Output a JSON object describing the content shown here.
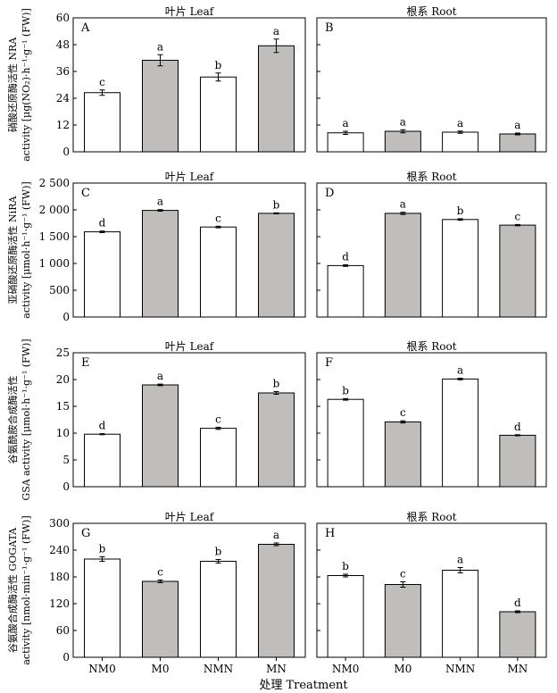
{
  "x_title": "处理 Treatment",
  "chart_data": [
    {
      "type": "bar",
      "panel": "A",
      "title": "叶片 Leaf",
      "ylabel_lines": [
        "硝酸还原酶活性 NRA",
        "activity [μg(NO₂)·h⁻¹·g⁻¹ (FW)]"
      ],
      "ylim": [
        0,
        60
      ],
      "yticks": [
        "0",
        "12",
        "24",
        "36",
        "48",
        "60"
      ],
      "categories": [
        "NM0",
        "M0",
        "NMN",
        "MN"
      ],
      "values": [
        26.5,
        41,
        33.5,
        47.5
      ],
      "errors": [
        1.2,
        2.5,
        1.8,
        3.0
      ],
      "letters": [
        "c",
        "a",
        "b",
        "a"
      ],
      "fills": [
        "#ffffff",
        "#c0bdbd",
        "#ffffff",
        "#c0bdbd"
      ]
    },
    {
      "type": "bar",
      "panel": "B",
      "title": "根系 Root",
      "ylim": [
        0,
        60
      ],
      "categories": [
        "NM0",
        "M0",
        "NMN",
        "MN"
      ],
      "values": [
        8.5,
        9.2,
        8.8,
        8.0
      ],
      "errors": [
        0.7,
        0.7,
        0.5,
        0.4
      ],
      "letters": [
        "a",
        "a",
        "a",
        "a"
      ],
      "fills": [
        "#ffffff",
        "#c0bdbd",
        "#ffffff",
        "#c0bdbd"
      ]
    },
    {
      "type": "bar",
      "panel": "C",
      "title": "叶片 Leaf",
      "ylabel_lines": [
        "亚硝酸还原酶活性 NiRA",
        "activity [μmol·h⁻¹·g⁻¹ (FW)]"
      ],
      "ylim": [
        0,
        2500
      ],
      "yticks": [
        "0",
        "500",
        "1 000",
        "1 500",
        "2 000",
        "2 500"
      ],
      "categories": [
        "NM0",
        "M0",
        "NMN",
        "MN"
      ],
      "values": [
        1590,
        1990,
        1680,
        1935
      ],
      "errors": [
        15,
        15,
        15,
        10
      ],
      "letters": [
        "d",
        "a",
        "c",
        "b"
      ],
      "fills": [
        "#ffffff",
        "#c0bdbd",
        "#ffffff",
        "#c0bdbd"
      ]
    },
    {
      "type": "bar",
      "panel": "D",
      "title": "根系 Root",
      "ylim": [
        0,
        2500
      ],
      "categories": [
        "NM0",
        "M0",
        "NMN",
        "MN"
      ],
      "values": [
        960,
        1935,
        1820,
        1715
      ],
      "errors": [
        15,
        20,
        15,
        12
      ],
      "letters": [
        "d",
        "a",
        "b",
        "c"
      ],
      "fills": [
        "#ffffff",
        "#c0bdbd",
        "#ffffff",
        "#c0bdbd"
      ]
    },
    {
      "type": "bar",
      "panel": "E",
      "title": "叶片 Leaf",
      "ylabel_lines": [
        "谷氨酰胺合成酶活性",
        "GSA activity [μmol·h⁻¹·g⁻¹ (FW)]"
      ],
      "ylim": [
        0,
        25
      ],
      "yticks": [
        "0",
        "5",
        "10",
        "15",
        "20",
        "25"
      ],
      "categories": [
        "NM0",
        "M0",
        "NMN",
        "MN"
      ],
      "values": [
        9.8,
        19.0,
        10.9,
        17.5
      ],
      "errors": [
        0.1,
        0.15,
        0.2,
        0.25
      ],
      "letters": [
        "d",
        "a",
        "c",
        "b"
      ],
      "fills": [
        "#ffffff",
        "#c0bdbd",
        "#ffffff",
        "#c0bdbd"
      ]
    },
    {
      "type": "bar",
      "panel": "F",
      "title": "根系 Root",
      "ylim": [
        0,
        25
      ],
      "categories": [
        "NM0",
        "M0",
        "NMN",
        "MN"
      ],
      "values": [
        16.3,
        12.1,
        20.1,
        9.6
      ],
      "errors": [
        0.15,
        0.2,
        0.15,
        0.1
      ],
      "letters": [
        "b",
        "c",
        "a",
        "d"
      ],
      "fills": [
        "#ffffff",
        "#c0bdbd",
        "#ffffff",
        "#c0bdbd"
      ]
    },
    {
      "type": "bar",
      "panel": "G",
      "title": "叶片 Leaf",
      "ylabel_lines": [
        "谷氨酸合成酶活性 GOGATA",
        "activity [nmol·min⁻¹·g⁻¹ (FW)]"
      ],
      "ylim": [
        0,
        300
      ],
      "yticks": [
        "0",
        "60",
        "120",
        "180",
        "240",
        "300"
      ],
      "categories": [
        "NM0",
        "M0",
        "NMN",
        "MN"
      ],
      "values": [
        220,
        170,
        215,
        253
      ],
      "errors": [
        5,
        3,
        4,
        3
      ],
      "letters": [
        "b",
        "c",
        "b",
        "a"
      ],
      "fills": [
        "#ffffff",
        "#c0bdbd",
        "#ffffff",
        "#c0bdbd"
      ]
    },
    {
      "type": "bar",
      "panel": "H",
      "title": "根系 Root",
      "ylim": [
        0,
        300
      ],
      "categories": [
        "NM0",
        "M0",
        "NMN",
        "MN"
      ],
      "values": [
        183,
        163,
        195,
        102
      ],
      "errors": [
        3,
        6,
        6,
        2
      ],
      "letters": [
        "b",
        "c",
        "a",
        "d"
      ],
      "fills": [
        "#ffffff",
        "#c0bdbd",
        "#ffffff",
        "#c0bdbd"
      ]
    }
  ]
}
